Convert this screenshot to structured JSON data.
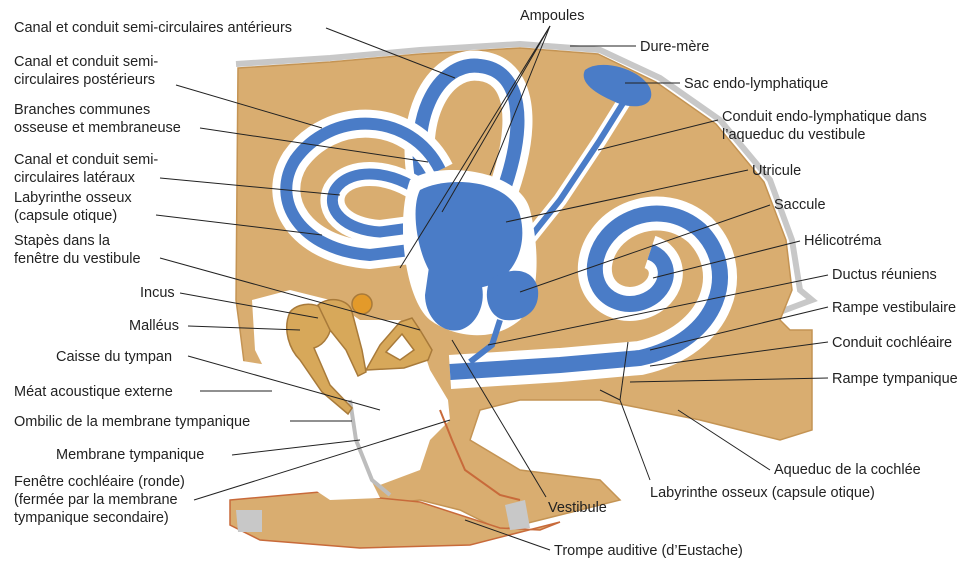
{
  "colors": {
    "bone": "#d9ad70",
    "bone_dark": "#c49454",
    "endolymph": "#4a7cc7",
    "endolymph_light": "#6b98d8",
    "perilymph": "#ffffff",
    "dura": "#c8c8c8",
    "ossicle": "#d7a85a",
    "membrane_line": "#c86a3a"
  },
  "labels": {
    "canal_anterieur": "Canal et conduit semi-circulaires antérieurs",
    "canal_posterieur": [
      "Canal et conduit semi-",
      "circulaires postérieurs"
    ],
    "branches_communes": [
      "Branches communes",
      "osseuse et membraneuse"
    ],
    "canal_lateral": [
      "Canal et conduit semi-",
      "circulaires latéraux"
    ],
    "labyrinthe_osseux_gauche": [
      "Labyrinthe osseux",
      "(capsule otique)"
    ],
    "stapes": [
      "Stapès dans la",
      "fenêtre du vestibule"
    ],
    "incus": "Incus",
    "malleus": "Malléus",
    "caisse_tympan": "Caisse du tympan",
    "meat_acoustique": "Méat acoustique externe",
    "ombilic": "Ombilic de la membrane tympanique",
    "membrane_tympanique": "Membrane tympanique",
    "fenetre_cochleaire": [
      "Fenêtre cochléaire (ronde)",
      "(fermée par la membrane",
      "tympanique secondaire)"
    ],
    "ampoules": "Ampoules",
    "dure_mere": "Dure-mère",
    "sac_endolymphatique": "Sac endo-lymphatique",
    "conduit_endolymphatique": [
      "Conduit endo-lymphatique dans",
      "l’aqueduc du vestibule"
    ],
    "utricule": "Utricule",
    "saccule": "Saccule",
    "helicotrema": "Hélicotréma",
    "ductus_reuniens": "Ductus réuniens",
    "rampe_vestibulaire": "Rampe vestibulaire",
    "conduit_cochleaire": "Conduit cochléaire",
    "rampe_tympanique": "Rampe tympanique",
    "aqueduc_cochlee": "Aqueduc de la cochlée",
    "labyrinthe_osseux_bas": "Labyrinthe osseux (capsule otique)",
    "vestibule": "Vestibule",
    "trompe_auditive": "Trompe auditive (d’Eustache)"
  }
}
